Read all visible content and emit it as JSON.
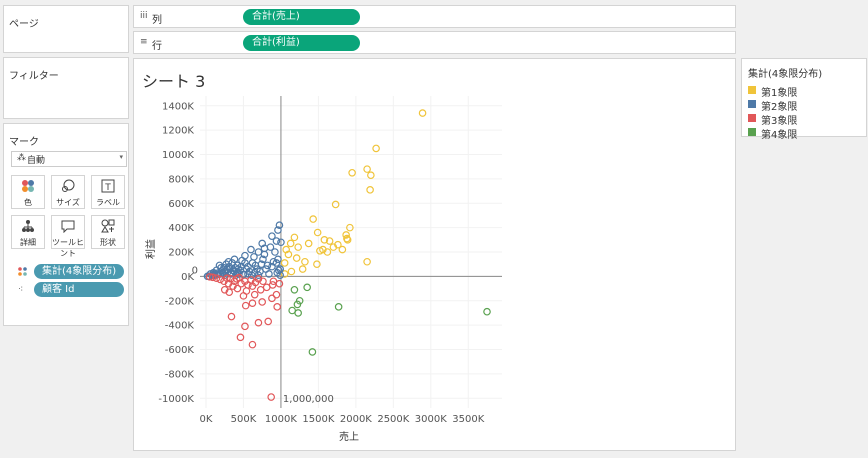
{
  "panels": {
    "pages": {
      "title": "ページ"
    },
    "filters": {
      "title": "フィルター"
    },
    "marks": {
      "title": "マーク",
      "mark_type": "自動",
      "buttons": [
        {
          "label": "色",
          "icon": "color-icon"
        },
        {
          "label": "サイズ",
          "icon": "size-icon"
        },
        {
          "label": "ラベル",
          "icon": "label-icon"
        },
        {
          "label": "詳細",
          "icon": "detail-icon"
        },
        {
          "label": "ツールヒント",
          "icon": "tooltip-icon"
        },
        {
          "label": "形状",
          "icon": "shape-icon"
        }
      ],
      "fields": [
        {
          "label": "集計(4象限分布)",
          "icon": "color-dots-icon"
        },
        {
          "label": "顧客 Id",
          "icon": "detail-tree-icon"
        }
      ]
    }
  },
  "shelves": {
    "columns": {
      "label": "列",
      "pill": "合計(売上)"
    },
    "rows": {
      "label": "行",
      "pill": "合計(利益)"
    }
  },
  "sheet": {
    "title": "シート 3"
  },
  "legend": {
    "title": "集計(4象限分布)",
    "items": [
      {
        "label": "第1象限",
        "color": "#f0c43a"
      },
      {
        "label": "第2象限",
        "color": "#4e79a7"
      },
      {
        "label": "第3象限",
        "color": "#e15759"
      },
      {
        "label": "第4象限",
        "color": "#59a14f"
      }
    ]
  },
  "chart_data": {
    "type": "scatter",
    "xlabel": "売上",
    "ylabel": "利益",
    "x_ticks": [
      "0K",
      "500K",
      "1000K",
      "1500K",
      "2000K",
      "2500K",
      "3000K",
      "3500K"
    ],
    "y_ticks": [
      "-1000K",
      "-800K",
      "-600K",
      "-400K",
      "-200K",
      "0K",
      "200K",
      "400K",
      "600K",
      "800K",
      "1000K",
      "1200K",
      "1400K"
    ],
    "xlim": [
      -80000,
      3950000
    ],
    "ylim": [
      -1080000,
      1480000
    ],
    "ref_line_x_label": "1,000,000",
    "ref_line_y_label": "0",
    "series": [
      {
        "name": "第1象限",
        "color": "#f0c43a",
        "points": [
          [
            2890000,
            1340000
          ],
          [
            2270000,
            1050000
          ],
          [
            2150000,
            880000
          ],
          [
            1950000,
            850000
          ],
          [
            2200000,
            830000
          ],
          [
            2190000,
            710000
          ],
          [
            1730000,
            590000
          ],
          [
            1430000,
            470000
          ],
          [
            1920000,
            400000
          ],
          [
            1870000,
            340000
          ],
          [
            1880000,
            310000
          ],
          [
            1580000,
            300000
          ],
          [
            1650000,
            290000
          ],
          [
            1760000,
            260000
          ],
          [
            1560000,
            220000
          ],
          [
            1520000,
            210000
          ],
          [
            1620000,
            200000
          ],
          [
            1700000,
            240000
          ],
          [
            2150000,
            120000
          ],
          [
            1210000,
            150000
          ],
          [
            1130000,
            270000
          ],
          [
            1070000,
            220000
          ],
          [
            1100000,
            180000
          ],
          [
            1050000,
            110000
          ],
          [
            1480000,
            100000
          ],
          [
            1320000,
            120000
          ],
          [
            1290000,
            60000
          ],
          [
            1140000,
            40000
          ],
          [
            1050000,
            20000
          ],
          [
            1230000,
            240000
          ],
          [
            1370000,
            270000
          ],
          [
            1820000,
            220000
          ],
          [
            1890000,
            300000
          ],
          [
            1490000,
            360000
          ],
          [
            1180000,
            320000
          ]
        ]
      },
      {
        "name": "第2象限",
        "color": "#4e79a7",
        "points": [
          [
            980000,
            420000
          ],
          [
            960000,
            380000
          ],
          [
            940000,
            290000
          ],
          [
            860000,
            240000
          ],
          [
            750000,
            270000
          ],
          [
            700000,
            200000
          ],
          [
            600000,
            220000
          ],
          [
            640000,
            160000
          ],
          [
            520000,
            170000
          ],
          [
            480000,
            130000
          ],
          [
            420000,
            90000
          ],
          [
            380000,
            140000
          ],
          [
            350000,
            110000
          ],
          [
            310000,
            80000
          ],
          [
            280000,
            60000
          ],
          [
            250000,
            40000
          ],
          [
            220000,
            30000
          ],
          [
            190000,
            20000
          ],
          [
            160000,
            15000
          ],
          [
            120000,
            10000
          ],
          [
            80000,
            5000
          ],
          [
            40000,
            2000
          ],
          [
            20000,
            1000
          ],
          [
            900000,
            120000
          ],
          [
            820000,
            90000
          ],
          [
            760000,
            140000
          ],
          [
            680000,
            60000
          ],
          [
            560000,
            80000
          ],
          [
            460000,
            50000
          ],
          [
            330000,
            30000
          ],
          [
            270000,
            100000
          ],
          [
            200000,
            70000
          ],
          [
            140000,
            50000
          ],
          [
            100000,
            30000
          ],
          [
            60000,
            20000
          ],
          [
            920000,
            200000
          ],
          [
            880000,
            330000
          ],
          [
            780000,
            180000
          ],
          [
            620000,
            110000
          ],
          [
            540000,
            60000
          ],
          [
            440000,
            20000
          ],
          [
            360000,
            50000
          ],
          [
            300000,
            120000
          ],
          [
            240000,
            70000
          ],
          [
            180000,
            90000
          ],
          [
            720000,
            40000
          ],
          [
            800000,
            60000
          ],
          [
            650000,
            30000
          ],
          [
            580000,
            40000
          ],
          [
            500000,
            15000
          ],
          [
            400000,
            10000
          ],
          [
            340000,
            20000
          ],
          [
            290000,
            35000
          ],
          [
            250000,
            10000
          ],
          [
            210000,
            45000
          ],
          [
            150000,
            25000
          ],
          [
            990000,
            60000
          ],
          [
            960000,
            140000
          ],
          [
            940000,
            110000
          ],
          [
            840000,
            20000
          ],
          [
            700000,
            10000
          ],
          [
            610000,
            10000
          ],
          [
            520000,
            110000
          ],
          [
            470000,
            80000
          ],
          [
            430000,
            60000
          ],
          [
            390000,
            70000
          ],
          [
            560000,
            20000
          ],
          [
            660000,
            90000
          ],
          [
            740000,
            100000
          ],
          [
            780000,
            230000
          ],
          [
            880000,
            80000
          ],
          [
            1000000,
            280000
          ],
          [
            970000,
            50000
          ],
          [
            950000,
            30000
          ],
          [
            990000,
            10000
          ],
          [
            420000,
            30000
          ],
          [
            380000,
            40000
          ],
          [
            320000,
            60000
          ],
          [
            230000,
            20000
          ],
          [
            110000,
            20000
          ]
        ]
      },
      {
        "name": "第3象限",
        "color": "#e15759",
        "points": [
          [
            870000,
            -990000
          ],
          [
            620000,
            -560000
          ],
          [
            460000,
            -500000
          ],
          [
            520000,
            -410000
          ],
          [
            340000,
            -330000
          ],
          [
            700000,
            -380000
          ],
          [
            830000,
            -370000
          ],
          [
            530000,
            -240000
          ],
          [
            620000,
            -220000
          ],
          [
            750000,
            -210000
          ],
          [
            880000,
            -180000
          ],
          [
            940000,
            -150000
          ],
          [
            650000,
            -150000
          ],
          [
            540000,
            -120000
          ],
          [
            420000,
            -100000
          ],
          [
            360000,
            -80000
          ],
          [
            300000,
            -60000
          ],
          [
            240000,
            -40000
          ],
          [
            190000,
            -25000
          ],
          [
            140000,
            -15000
          ],
          [
            90000,
            -8000
          ],
          [
            50000,
            -4000
          ],
          [
            730000,
            -110000
          ],
          [
            810000,
            -90000
          ],
          [
            470000,
            -60000
          ],
          [
            380000,
            -40000
          ],
          [
            330000,
            -20000
          ],
          [
            280000,
            -15000
          ],
          [
            560000,
            -70000
          ],
          [
            660000,
            -50000
          ],
          [
            980000,
            -60000
          ],
          [
            900000,
            -40000
          ],
          [
            700000,
            -20000
          ],
          [
            600000,
            -30000
          ],
          [
            440000,
            -10000
          ],
          [
            250000,
            -110000
          ],
          [
            310000,
            -130000
          ],
          [
            500000,
            -160000
          ],
          [
            950000,
            -250000
          ],
          [
            890000,
            -70000
          ],
          [
            760000,
            -40000
          ],
          [
            620000,
            -80000
          ],
          [
            520000,
            -40000
          ],
          [
            410000,
            -20000
          ]
        ]
      },
      {
        "name": "第4象限",
        "color": "#59a14f",
        "points": [
          [
            3750000,
            -290000
          ],
          [
            1420000,
            -620000
          ],
          [
            1770000,
            -250000
          ],
          [
            1220000,
            -230000
          ],
          [
            1230000,
            -300000
          ],
          [
            1150000,
            -280000
          ],
          [
            1250000,
            -200000
          ],
          [
            1180000,
            -110000
          ],
          [
            1350000,
            -90000
          ]
        ]
      }
    ]
  }
}
